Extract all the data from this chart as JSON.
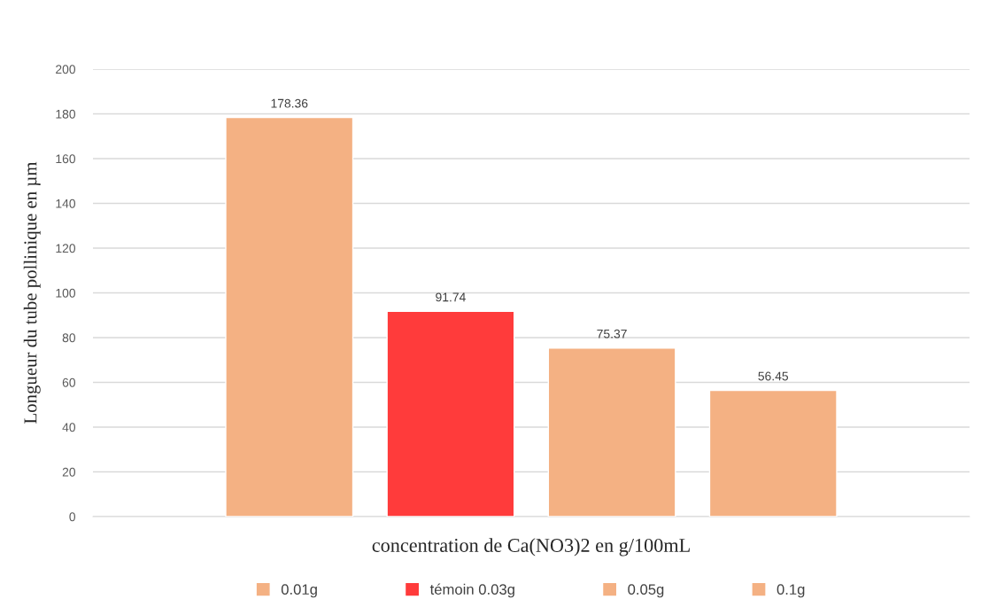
{
  "chart_data": {
    "type": "bar",
    "xlabel": "concentration de Ca(NO3)2 en g/100mL",
    "ylabel": "Longueur du tube pollinique en µm",
    "categories": [
      null
    ],
    "series": [
      {
        "name": "0.01g",
        "color": "#f4b183",
        "values": [
          178.36
        ]
      },
      {
        "name": "témoin 0.03g",
        "color": "#ff3b3b",
        "values": [
          91.74
        ]
      },
      {
        "name": "0.05g",
        "color": "#f4b183",
        "values": [
          75.37
        ]
      },
      {
        "name": "0.1g",
        "color": "#f4b183",
        "values": [
          56.45
        ]
      }
    ],
    "ylim": [
      0,
      200
    ],
    "yticks": [
      0,
      20,
      40,
      60,
      80,
      100,
      120,
      140,
      160,
      180,
      200
    ],
    "grid": "y",
    "legend": "bottom",
    "data_labels": true
  }
}
